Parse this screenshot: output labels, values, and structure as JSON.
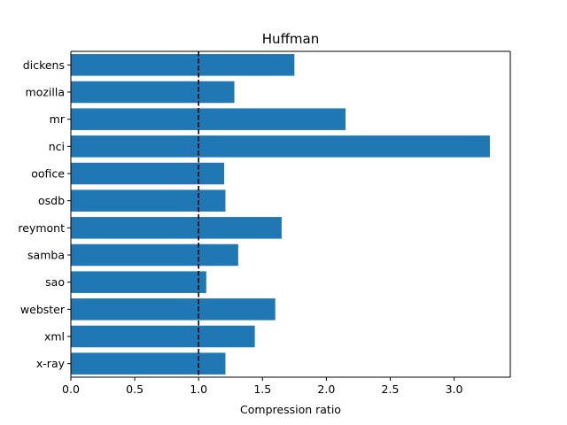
{
  "chart_data": {
    "type": "bar",
    "orientation": "horizontal",
    "title": "Huffman",
    "xlabel": "Compression ratio",
    "ylabel": "",
    "categories": [
      "dickens",
      "mozilla",
      "mr",
      "nci",
      "oofice",
      "osdb",
      "reymont",
      "samba",
      "sao",
      "webster",
      "xml",
      "x-ray"
    ],
    "values": [
      1.75,
      1.28,
      2.15,
      3.28,
      1.2,
      1.21,
      1.65,
      1.31,
      1.06,
      1.6,
      1.44,
      1.21
    ],
    "xlim": [
      0,
      3.44
    ],
    "xticks": [
      "0.0",
      "0.5",
      "1.0",
      "1.5",
      "2.0",
      "2.5",
      "3.0"
    ],
    "reference_line": {
      "x": 1.0,
      "style": "dashed",
      "color": "#000000"
    },
    "bar_color": "#1f77b4",
    "grid": false
  }
}
